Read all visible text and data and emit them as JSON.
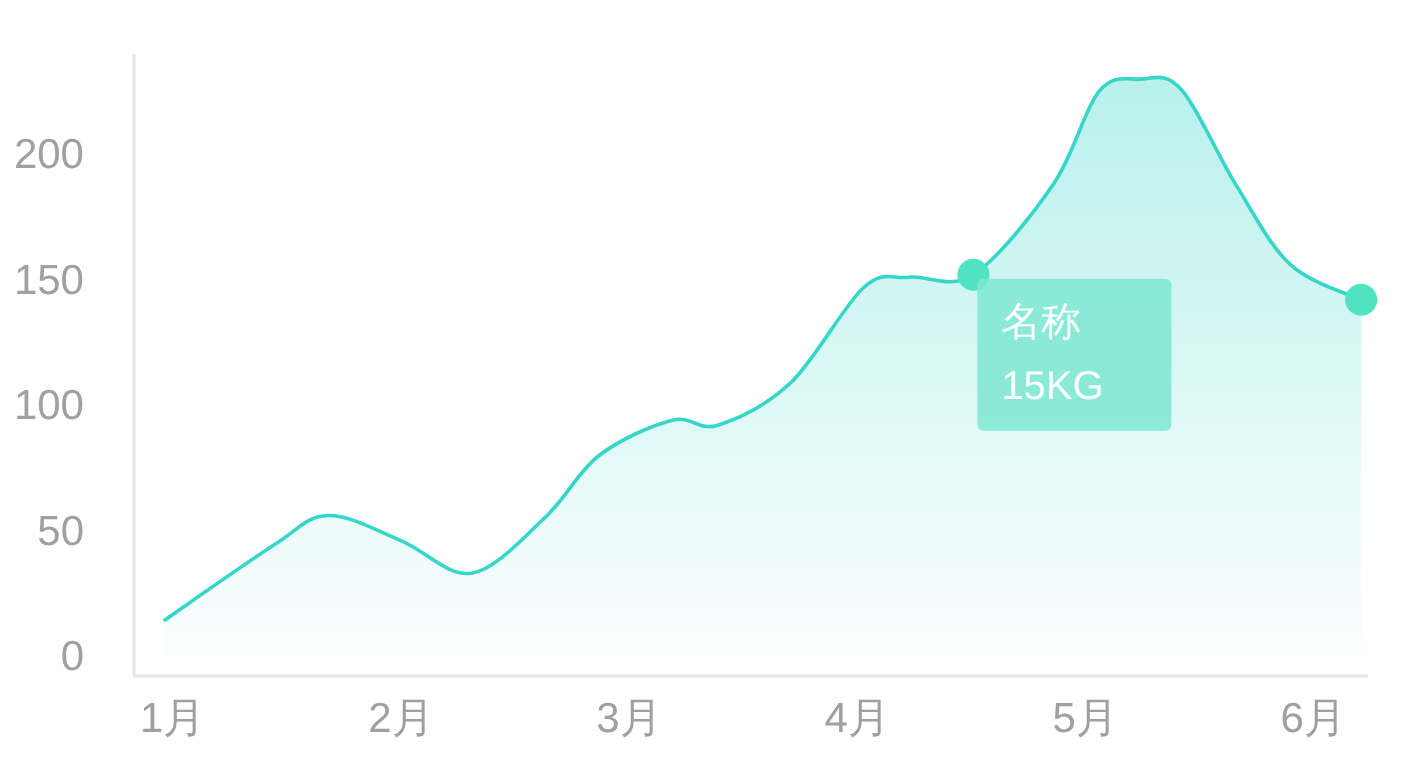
{
  "chart_data": {
    "type": "area",
    "xlim": [
      0.83,
      6.24
    ],
    "ylim": [
      -8,
      240
    ],
    "xticks": [
      {
        "value": 1,
        "label": "1月"
      },
      {
        "value": 2,
        "label": "2月"
      },
      {
        "value": 3,
        "label": "3月"
      },
      {
        "value": 4,
        "label": "4月"
      },
      {
        "value": 5,
        "label": "5月"
      },
      {
        "value": 6,
        "label": "6月"
      }
    ],
    "yticks": [
      0,
      50,
      100,
      150,
      200
    ],
    "series": [
      {
        "color": "#36d6c9",
        "x": [
          0.96,
          1.44,
          1.68,
          2.0,
          2.31,
          2.63,
          2.87,
          3.19,
          3.39,
          3.71,
          4.03,
          4.23,
          4.51,
          4.86,
          5.06,
          5.24,
          5.42,
          5.66,
          5.9,
          6.21
        ],
        "values": [
          14,
          44,
          56,
          46,
          33,
          55,
          80,
          94,
          92,
          109,
          147,
          151,
          152,
          188,
          225,
          230,
          226,
          188,
          156,
          142
        ]
      },
      {
        "type": "scatter",
        "color": "#50e3c2",
        "marker": "circle",
        "x": [
          4.51,
          6.21
        ],
        "values": [
          152,
          142
        ]
      }
    ],
    "annotations": [
      {
        "text": "名称",
        "x": 4.51,
        "y": 152
      },
      {
        "text": "15KG",
        "x": 4.51,
        "y": 152
      }
    ]
  }
}
